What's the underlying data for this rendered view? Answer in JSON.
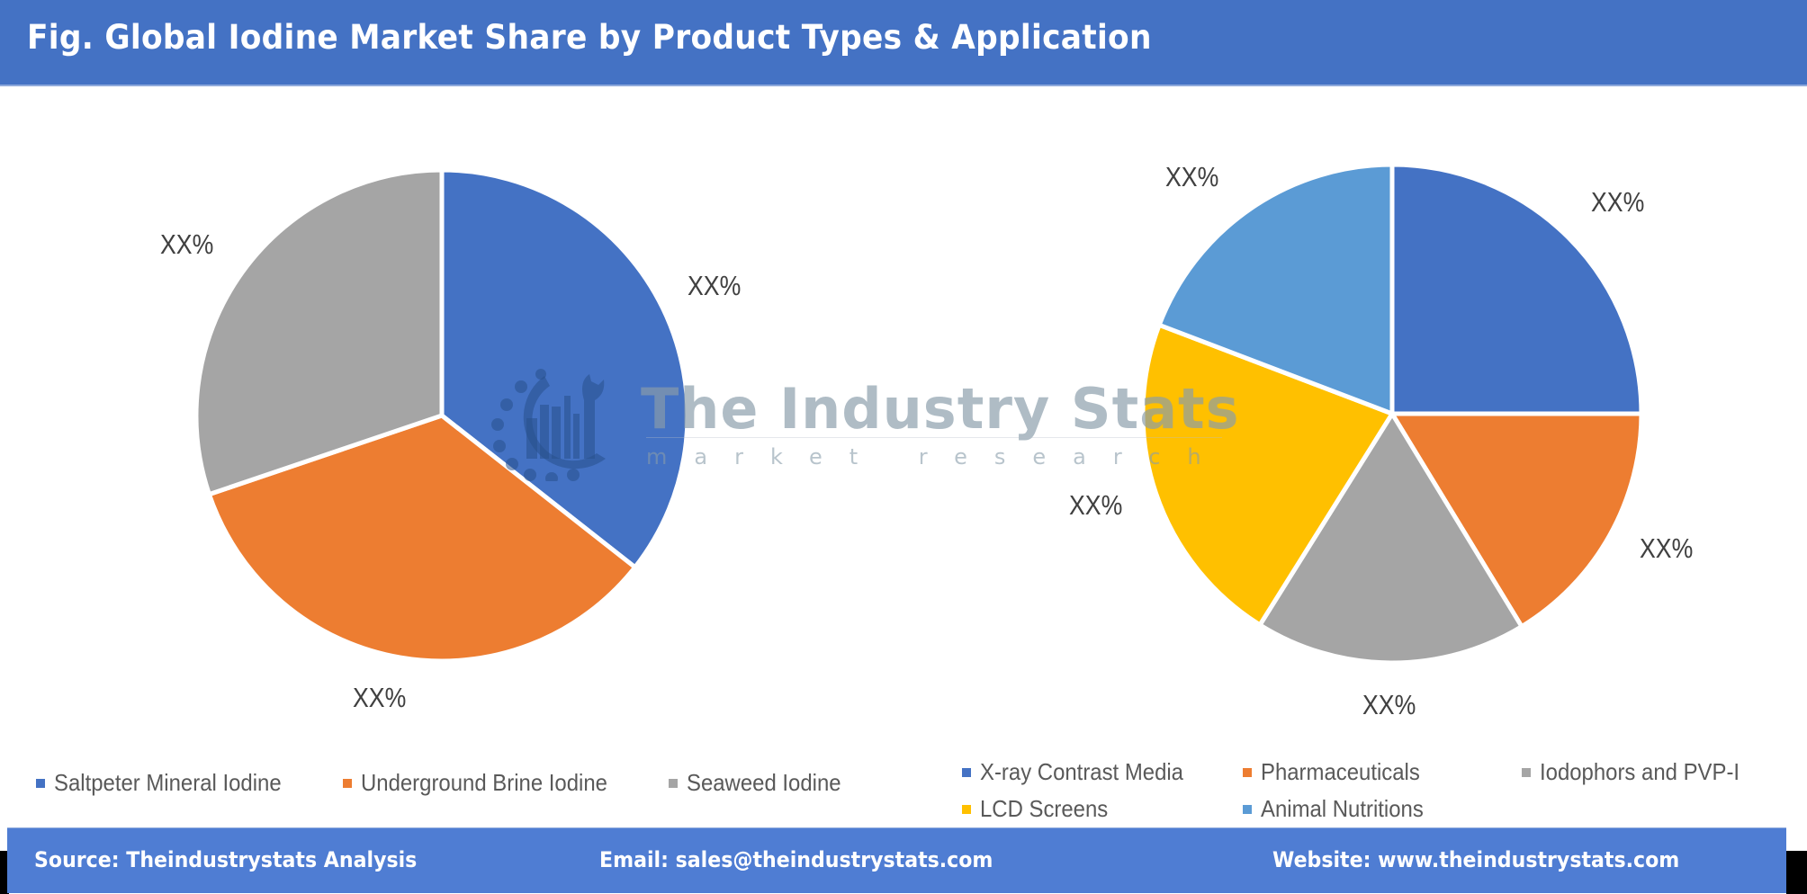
{
  "header": {
    "title": "Fig. Global Iodine Market Share by Product Types & Application"
  },
  "watermark": {
    "title": "The Industry Stats",
    "subtitle": "market research"
  },
  "chart_data": [
    {
      "type": "pie",
      "title": "Global Iodine Market Share by Product Types",
      "categories": [
        "Saltpeter Mineral Iodine",
        "Underground Brine Iodine",
        "Seaweed Iodine"
      ],
      "values": [
        35.6,
        34.2,
        30.2
      ],
      "data_labels": [
        "XX%",
        "XX%",
        "XX%"
      ],
      "colors": [
        "#4472c4",
        "#ed7d31",
        "#a5a5a5"
      ],
      "legend_position": "bottom",
      "start_angle": 0,
      "direction": "clockwise"
    },
    {
      "type": "pie",
      "title": "Global Iodine Market Share by Application",
      "categories": [
        "X-ray Contrast Media",
        "Pharmaceuticals",
        "Iodophors and PVP-I",
        "LCD Screens",
        "Animal Nutritions"
      ],
      "values": [
        25.0,
        16.3,
        17.6,
        21.9,
        19.2
      ],
      "data_labels": [
        "XX%",
        "XX%",
        "XX%",
        "XX%",
        "XX%"
      ],
      "colors": [
        "#4472c4",
        "#ed7d31",
        "#a5a5a5",
        "#ffc000",
        "#5b9bd5"
      ],
      "legend_position": "bottom",
      "start_angle": 0,
      "direction": "clockwise"
    }
  ],
  "left_chart": {
    "labels": [
      "XX%",
      "XX%",
      "XX%"
    ],
    "legend": [
      {
        "label": "Saltpeter Mineral Iodine",
        "color": "#4472c4"
      },
      {
        "label": "Underground Brine Iodine",
        "color": "#ed7d31"
      },
      {
        "label": "Seaweed Iodine",
        "color": "#a5a5a5"
      }
    ]
  },
  "right_chart": {
    "labels": [
      "XX%",
      "XX%",
      "XX%",
      "XX%",
      "XX%"
    ],
    "legend": [
      {
        "label": "X-ray Contrast Media",
        "color": "#4472c4"
      },
      {
        "label": "Pharmaceuticals",
        "color": "#ed7d31"
      },
      {
        "label": "Iodophors and PVP-I",
        "color": "#a5a5a5"
      },
      {
        "label": "LCD Screens",
        "color": "#ffc000"
      },
      {
        "label": "Animal Nutritions",
        "color": "#5b9bd5"
      }
    ]
  },
  "footer": {
    "source": "Source: Theindustrystats Analysis",
    "email": "Email: sales@theindustrystats.com",
    "website": "Website: www.theindustrystats.com"
  }
}
